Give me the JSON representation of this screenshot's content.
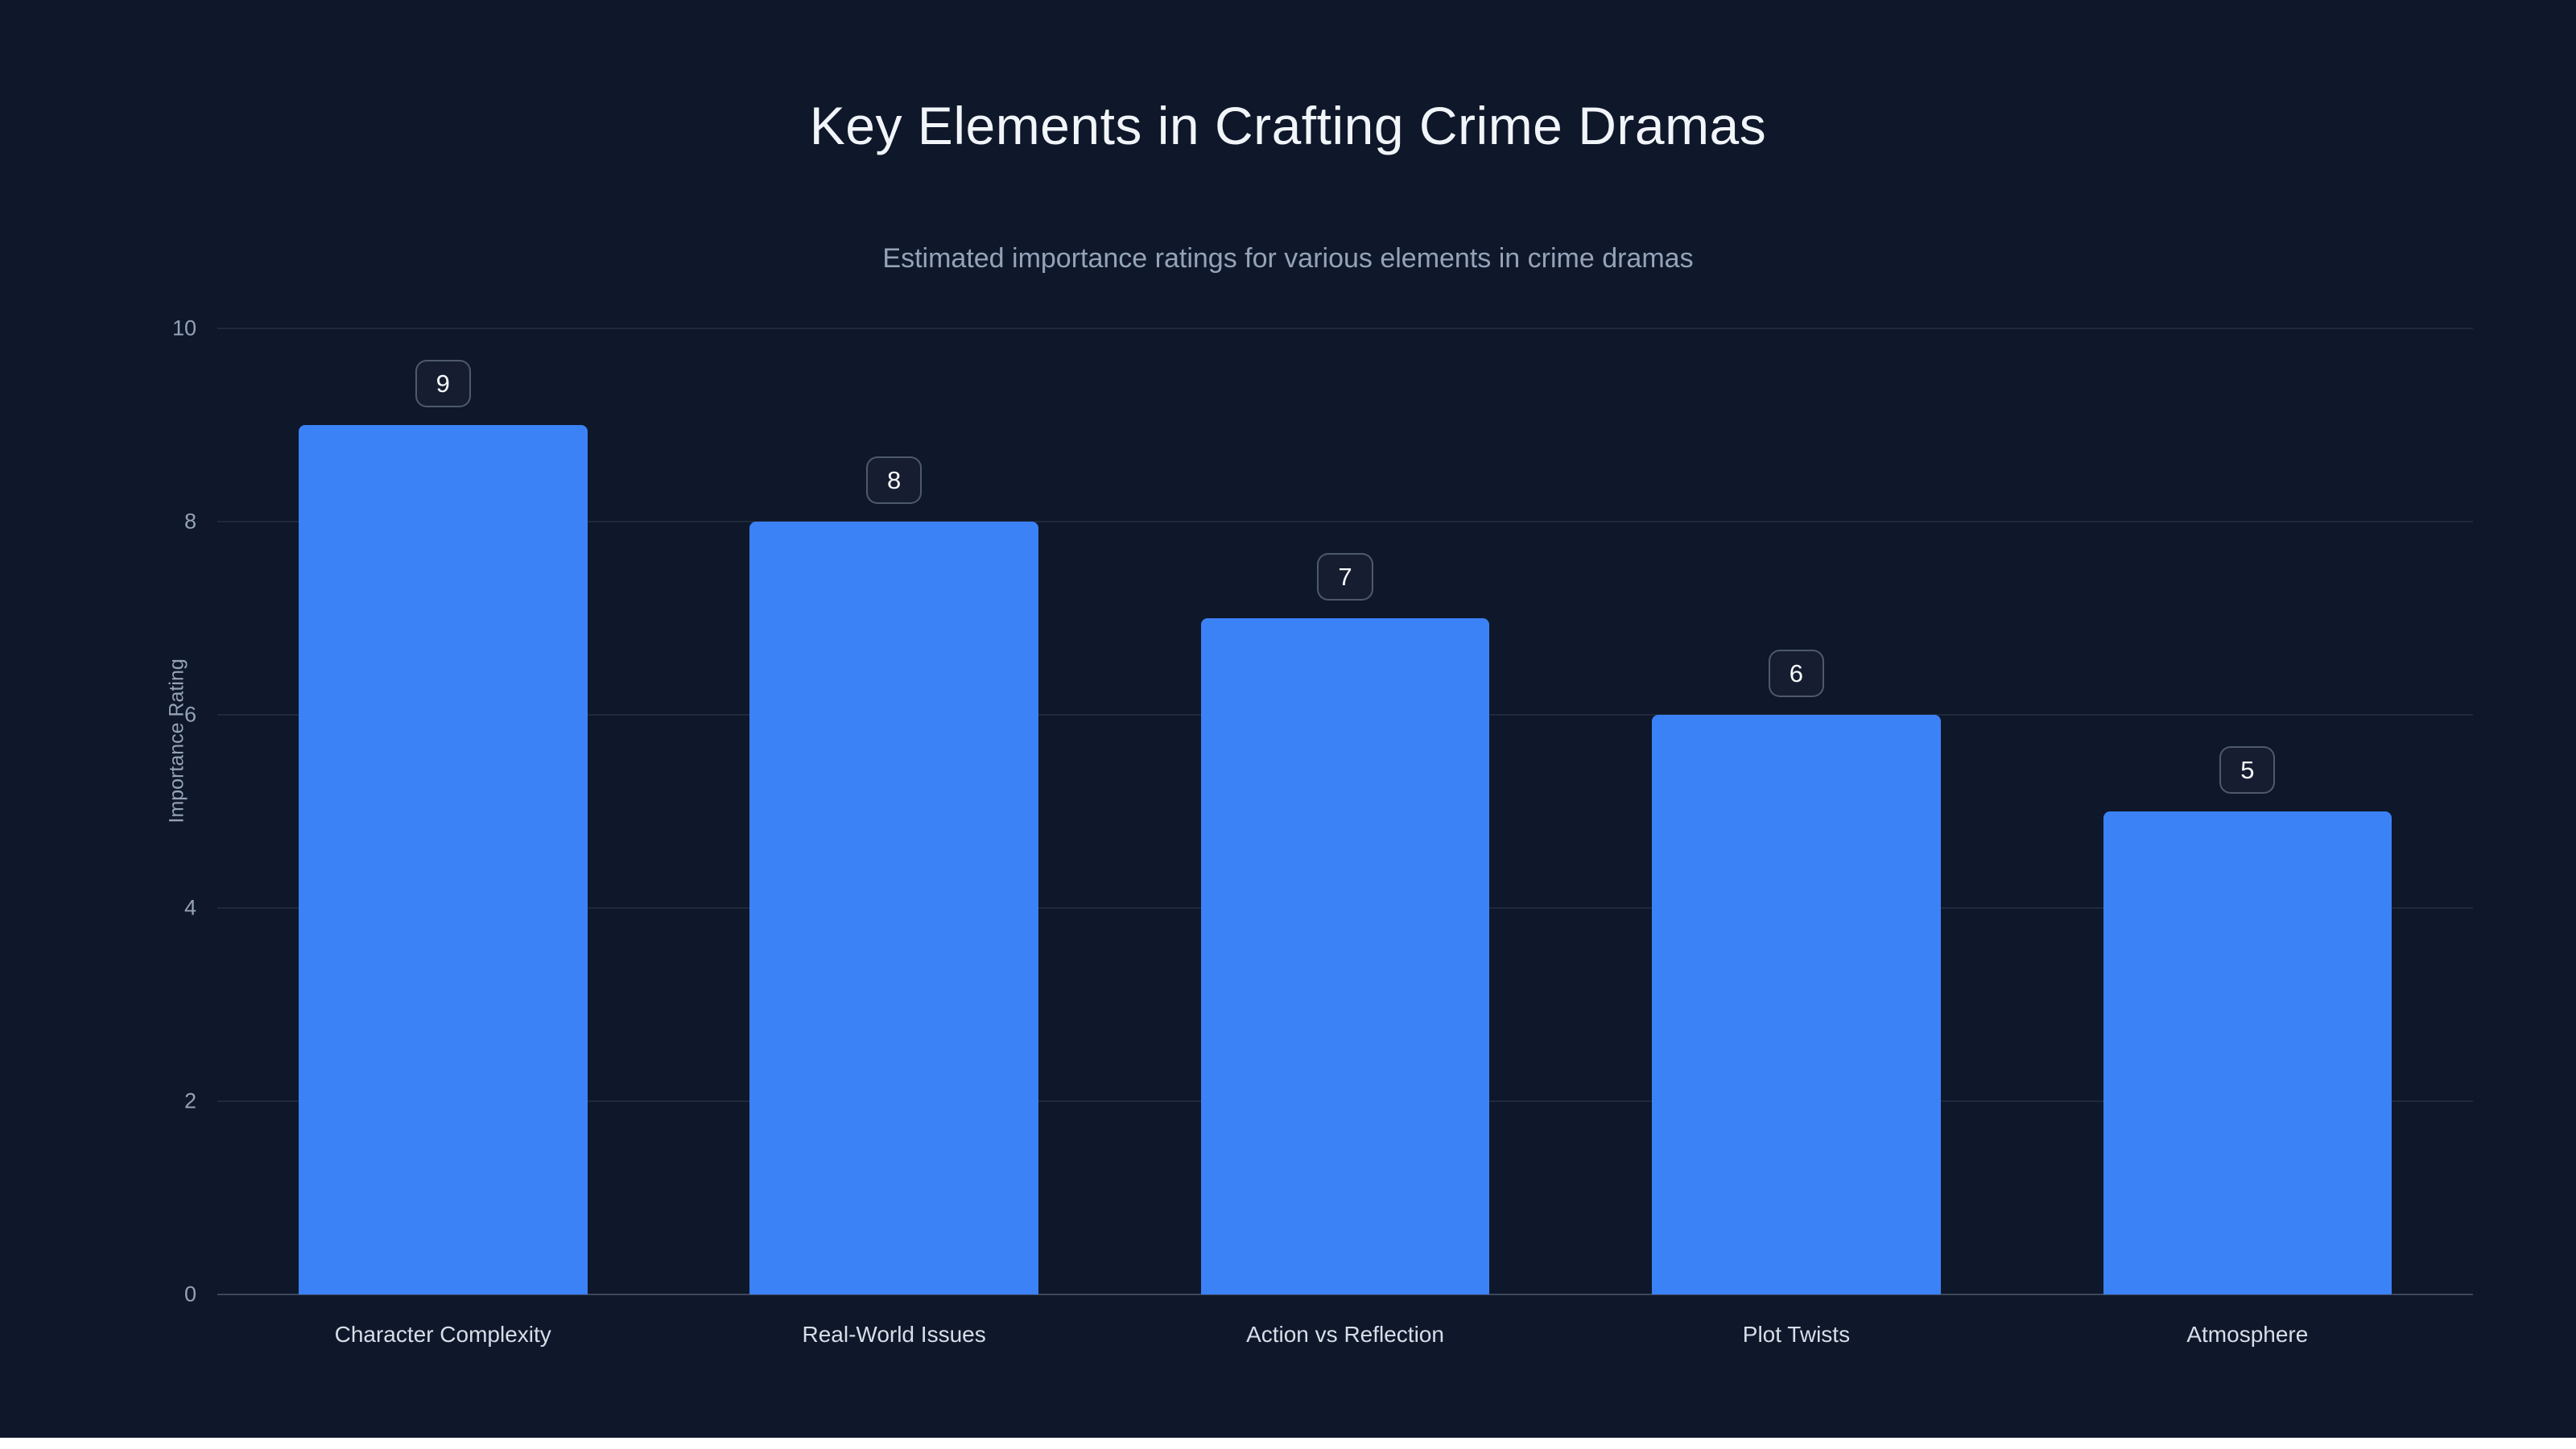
{
  "page": {
    "title": "Key Elements in Crafting Crime Dramas",
    "subtitle": "Estimated importance ratings for various elements in crime dramas"
  },
  "chart_data": {
    "type": "bar",
    "title": "Key Elements in Crafting Crime Dramas",
    "subtitle": "Estimated importance ratings for various elements in crime dramas",
    "categories": [
      "Character Complexity",
      "Real-World Issues",
      "Action vs Reflection",
      "Plot Twists",
      "Atmosphere"
    ],
    "values": [
      9,
      8,
      7,
      6,
      5
    ],
    "value_labels": [
      "9",
      "8",
      "7",
      "6",
      "5"
    ],
    "xlabel": "",
    "ylabel": "Importance Rating",
    "ylim": [
      0,
      10
    ],
    "yticks": [
      0,
      2,
      4,
      6,
      8,
      10
    ],
    "grid": true,
    "legend": false,
    "colors": {
      "background": "#0f172a",
      "bar": "#3b82f6",
      "title_text": "#f1f5f9",
      "subtitle_text": "#94a3b8",
      "axis_text": "#94a3b8",
      "category_text": "#d7dee8",
      "gridline": "rgba(148,163,184,0.13)",
      "badge_border": "rgba(148,163,184,0.45)",
      "badge_text": "#f8fafc",
      "bottom_strip": "#ffffff"
    }
  }
}
